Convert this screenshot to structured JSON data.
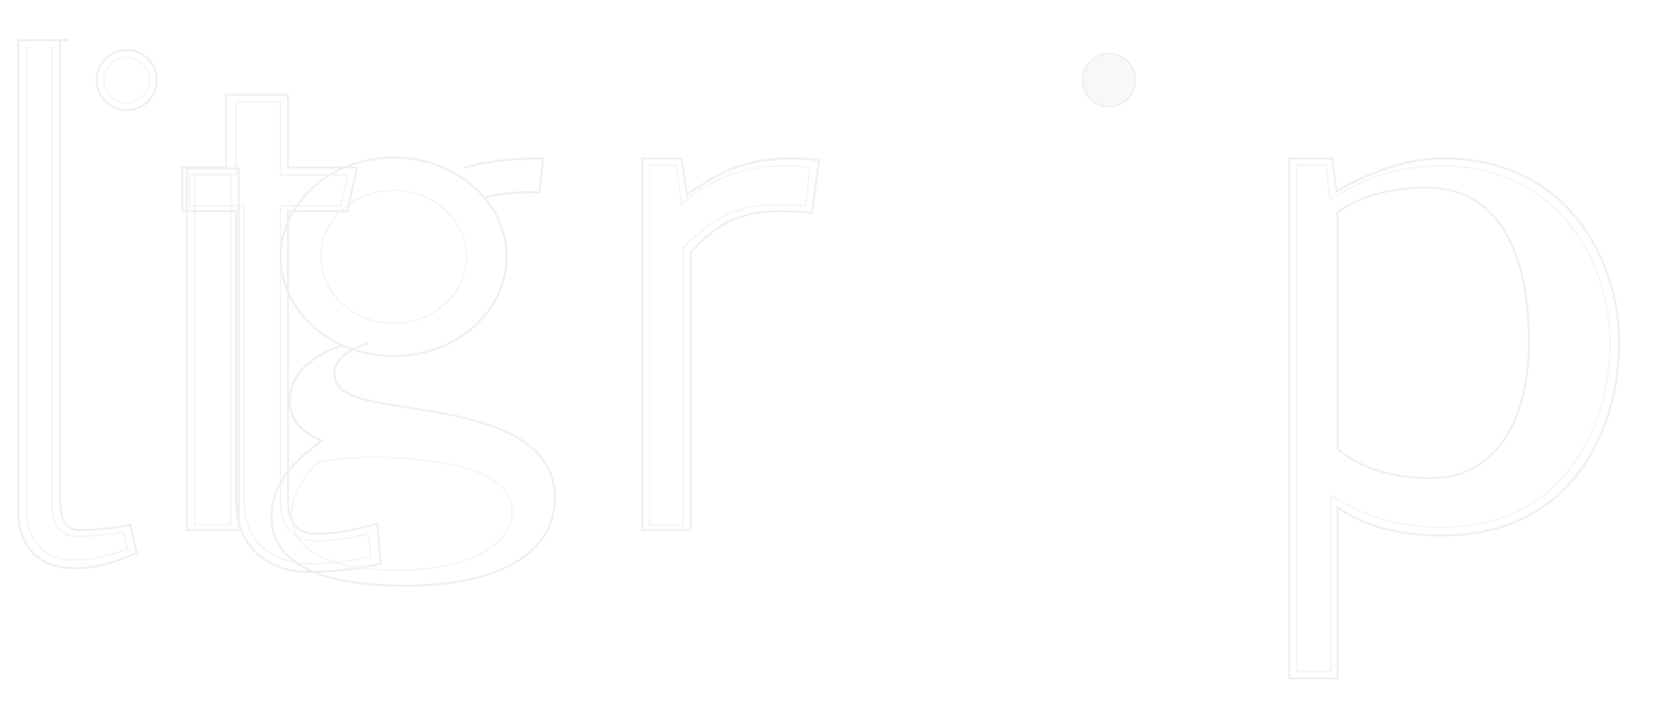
{
  "logo": {
    "wordmark": "litgrip",
    "colors": {
      "background": "#ffffff",
      "outline": "#efefef",
      "outline_inner": "#f4f4f4"
    }
  }
}
